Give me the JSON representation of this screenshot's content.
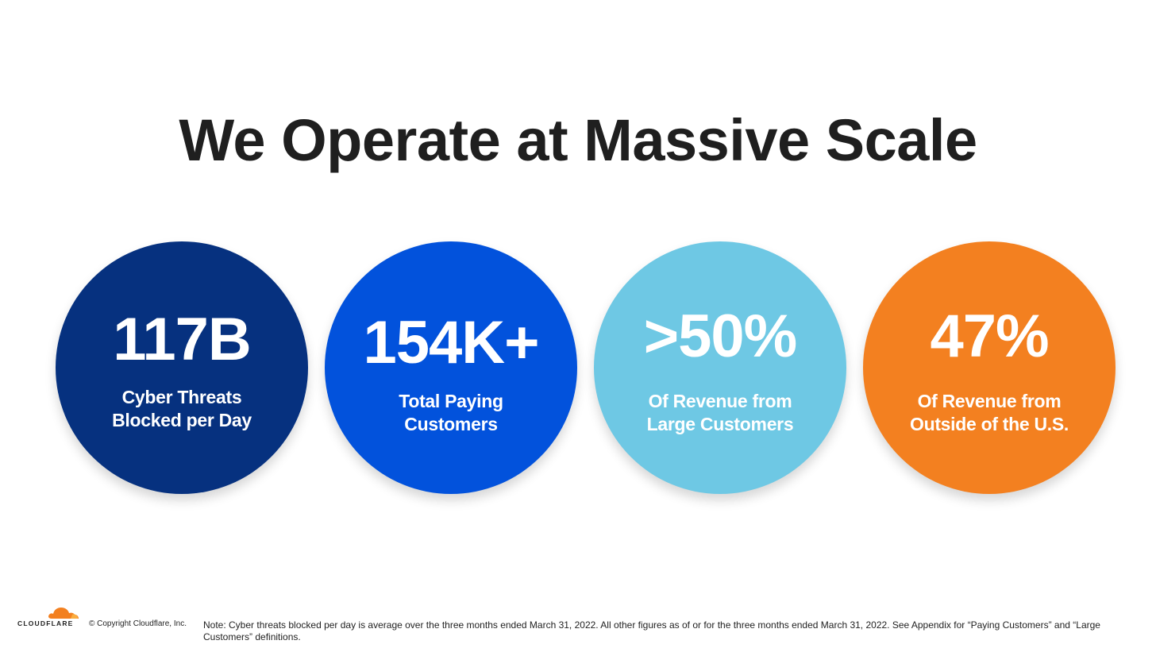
{
  "slide": {
    "title": "We Operate at Massive Scale"
  },
  "stats": [
    {
      "value": "117B",
      "label_line1": "Cyber Threats",
      "label_line2": "Blocked per Day",
      "color": "#06317f"
    },
    {
      "value": "154K+",
      "label_line1": "Total Paying",
      "label_line2": "Customers",
      "color": "#0252dc"
    },
    {
      "value": ">50%",
      "label_line1": "Of Revenue from",
      "label_line2": "Large Customers",
      "color": "#6ec8e4"
    },
    {
      "value": "47%",
      "label_line1": "Of Revenue from",
      "label_line2": "Outside of the U.S.",
      "color": "#f38020"
    }
  ],
  "footer": {
    "brand": "CLOUDFLARE",
    "logo_icon": "cloud-icon",
    "logo_color": "#f38020",
    "copyright": "© Copyright Cloudflare, Inc.",
    "note": "Note: Cyber threats blocked per day is average over the three months ended March 31, 2022. All other figures as of or for the three months ended March 31, 2022. See Appendix for “Paying Customers” and “Large Customers” definitions."
  }
}
